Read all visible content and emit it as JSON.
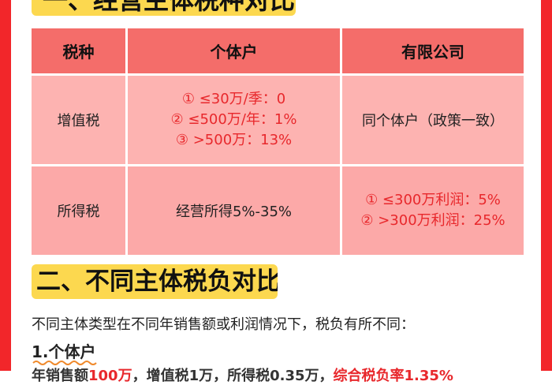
{
  "section1_title": "一、经营主体税种对比",
  "table": {
    "headers": [
      "税种",
      "个体户",
      "有限公司"
    ],
    "rows": [
      {
        "tax": "增值税",
        "individual": [
          "① ≤30万/季：0",
          "② ≤500万/年：1%",
          "③ >500万：13%"
        ],
        "company": [
          "同个体户（政策一致）"
        ]
      },
      {
        "tax": "所得税",
        "individual": [
          "经营所得5%-35%"
        ],
        "company": [
          "① ≤300万利润：5%",
          "② >300万利润：25%"
        ]
      }
    ]
  },
  "section2_title": "二、不同主体税负对比",
  "intro": "不同主体类型在不同年销售额或利润情况下，税负有所不同：",
  "sub1": "1.个体户",
  "partial_line": {
    "a": "年销售额",
    "b": "100万",
    "c": "，增值税1万，所得税0.35万，",
    "d": "综合税负率1.35%"
  },
  "colors": {
    "frame": "#f2262a",
    "banner": "#fcd84f",
    "header": "#f46d6a",
    "cell": "#fdb3b1",
    "accent_text": "#e8282c"
  }
}
